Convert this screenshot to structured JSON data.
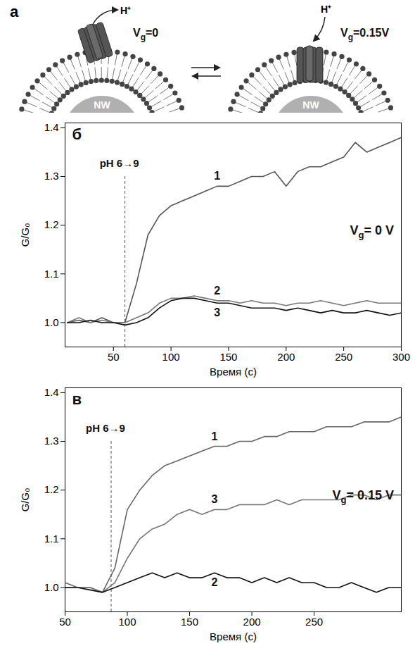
{
  "diagram": {
    "panel": "a",
    "left": {
      "gate": {
        "symbol": "V",
        "subscript": "g",
        "text": "=0"
      },
      "wire": "NW",
      "ion": "H⁺"
    },
    "right": {
      "gate": {
        "symbol": "V",
        "subscript": "g",
        "text": "=0.15V"
      },
      "wire": "NW",
      "ion": "H⁺"
    }
  },
  "chart_data": [
    {
      "type": "line",
      "panel": "б",
      "xlabel": "Время (с)",
      "ylabel": "G/G₀",
      "xlim": [
        8,
        300
      ],
      "xticks": [
        50,
        100,
        150,
        200,
        250,
        300
      ],
      "ylim": [
        0.95,
        1.41
      ],
      "yticks": [
        {
          "value": 1,
          "label": "1.0"
        },
        1.1,
        1.2,
        1.3,
        1.4
      ],
      "annotations": [
        {
          "text": "pH 6→9",
          "x": 60
        }
      ],
      "gate_label": {
        "symbol": "V",
        "subscript": "g",
        "text": "= 0 V"
      },
      "x": [
        10,
        20,
        30,
        40,
        50,
        60,
        70,
        80,
        90,
        100,
        110,
        120,
        130,
        140,
        150,
        160,
        170,
        180,
        190,
        200,
        210,
        220,
        230,
        240,
        250,
        260,
        270,
        280,
        290,
        300
      ],
      "series": [
        {
          "name": "1",
          "color": "#555555",
          "values": [
            1.0,
            1.005,
            1.0,
            1.01,
            1.0,
            1.0,
            1.08,
            1.18,
            1.22,
            1.24,
            1.25,
            1.26,
            1.27,
            1.28,
            1.28,
            1.29,
            1.3,
            1.3,
            1.31,
            1.28,
            1.31,
            1.32,
            1.32,
            1.33,
            1.34,
            1.37,
            1.35,
            1.36,
            1.37,
            1.38
          ]
        },
        {
          "name": "2",
          "color": "#777777",
          "values": [
            1.0,
            1.01,
            1.0,
            1.005,
            1.0,
            1.0,
            1.01,
            1.02,
            1.04,
            1.05,
            1.05,
            1.055,
            1.05,
            1.045,
            1.045,
            1.04,
            1.045,
            1.04,
            1.04,
            1.035,
            1.04,
            1.04,
            1.045,
            1.04,
            1.035,
            1.04,
            1.045,
            1.04,
            1.04,
            1.04
          ]
        },
        {
          "name": "3",
          "color": "#111111",
          "values": [
            1.0,
            1.0,
            1.005,
            1.0,
            1.0,
            0.995,
            1.0,
            1.01,
            1.03,
            1.045,
            1.05,
            1.05,
            1.045,
            1.04,
            1.04,
            1.035,
            1.03,
            1.03,
            1.03,
            1.025,
            1.03,
            1.025,
            1.02,
            1.025,
            1.02,
            1.02,
            1.025,
            1.02,
            1.015,
            1.02
          ]
        }
      ]
    },
    {
      "type": "line",
      "panel": "в",
      "xlabel": "Время (с)",
      "ylabel": "G/G₀",
      "xlim": [
        50,
        320
      ],
      "xticks": [
        50,
        100,
        150,
        200,
        250
      ],
      "ylim": [
        0.95,
        1.41
      ],
      "yticks": [
        {
          "value": 1,
          "label": "1.0"
        },
        1.1,
        1.2,
        1.3,
        1.4
      ],
      "annotations": [
        {
          "text": "pH 6→9",
          "x": 87
        }
      ],
      "gate_label": {
        "symbol": "V",
        "subscript": "g",
        "text": "= 0.15 V"
      },
      "x": [
        50,
        60,
        70,
        80,
        90,
        100,
        110,
        120,
        130,
        140,
        150,
        160,
        170,
        180,
        190,
        200,
        210,
        220,
        230,
        240,
        250,
        260,
        270,
        280,
        290,
        300,
        310,
        320
      ],
      "series": [
        {
          "name": "1",
          "color": "#666666",
          "values": [
            1.01,
            1.0,
            1.0,
            0.99,
            1.04,
            1.16,
            1.2,
            1.23,
            1.25,
            1.26,
            1.27,
            1.28,
            1.29,
            1.29,
            1.3,
            1.3,
            1.31,
            1.31,
            1.32,
            1.32,
            1.32,
            1.33,
            1.33,
            1.33,
            1.34,
            1.34,
            1.34,
            1.35
          ]
        },
        {
          "name": "3",
          "color": "#777777",
          "values": [
            1.0,
            1.0,
            1.0,
            0.99,
            1.01,
            1.06,
            1.1,
            1.12,
            1.13,
            1.15,
            1.16,
            1.15,
            1.16,
            1.16,
            1.17,
            1.17,
            1.17,
            1.18,
            1.17,
            1.18,
            1.18,
            1.18,
            1.18,
            1.19,
            1.19,
            1.18,
            1.19,
            1.19
          ]
        },
        {
          "name": "2",
          "color": "#111111",
          "values": [
            1.0,
            1.0,
            0.995,
            0.99,
            1.0,
            1.01,
            1.02,
            1.03,
            1.02,
            1.03,
            1.02,
            1.02,
            1.03,
            1.02,
            1.02,
            1.01,
            1.02,
            1.01,
            1.02,
            1.01,
            1.01,
            1.0,
            1.0,
            1.01,
            1.0,
            0.99,
            1.0,
            1.0
          ]
        }
      ]
    }
  ]
}
